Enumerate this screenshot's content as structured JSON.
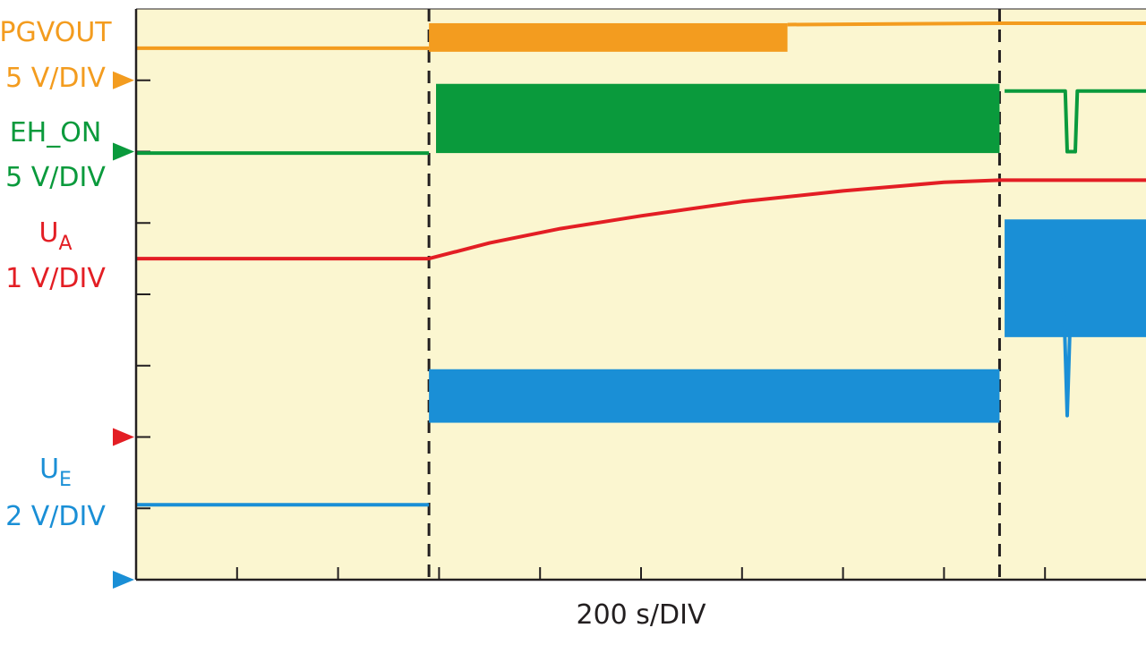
{
  "chart_data": {
    "type": "line",
    "xlabel": "200 s/DIV",
    "grid": false,
    "divisions": {
      "x": 10,
      "y": 8
    },
    "background_color": "#fbf6d0",
    "x_unit": "div",
    "y_unit": "div",
    "xlim": [
      0,
      10
    ],
    "ylim": [
      0,
      8
    ],
    "event_markers_x": [
      2.9,
      8.55
    ],
    "channels": [
      {
        "id": "pgvout",
        "name": "PGVOUT",
        "scale": "5 V/DIV",
        "color": "#f39c1f",
        "ground_level": 7,
        "segments": [
          {
            "style": "line",
            "points": [
              [
                0,
                7.45
              ],
              [
                2.9,
                7.45
              ]
            ]
          },
          {
            "style": "band",
            "x": [
              2.9,
              6.45
            ],
            "low": 7.4,
            "high": 7.8
          },
          {
            "style": "line",
            "points": [
              [
                6.45,
                7.78
              ],
              [
                8.55,
                7.8
              ],
              [
                10,
                7.8
              ]
            ]
          }
        ]
      },
      {
        "id": "eh_on",
        "name": "EH_ON",
        "scale": "5 V/DIV",
        "color": "#0a9a3c",
        "ground_level": 6,
        "segments": [
          {
            "style": "line",
            "points": [
              [
                0,
                5.98
              ],
              [
                2.9,
                5.98
              ]
            ]
          },
          {
            "style": "band",
            "x": [
              2.97,
              8.55
            ],
            "low": 5.98,
            "high": 6.95
          },
          {
            "style": "line",
            "points": [
              [
                8.6,
                6.85
              ],
              [
                9.2,
                6.85
              ],
              [
                9.22,
                6.0
              ],
              [
                9.3,
                6.0
              ],
              [
                9.32,
                6.85
              ],
              [
                10,
                6.85
              ]
            ]
          }
        ]
      },
      {
        "id": "ua",
        "name": "U",
        "name_sub": "A",
        "scale": "1 V/DIV",
        "color": "#e31e24",
        "ground_level": 2,
        "segments": [
          {
            "style": "line",
            "points": [
              [
                0,
                4.5
              ],
              [
                2.9,
                4.5
              ],
              [
                3.5,
                4.72
              ],
              [
                4.2,
                4.92
              ],
              [
                5.0,
                5.1
              ],
              [
                6.0,
                5.3
              ],
              [
                7.0,
                5.45
              ],
              [
                8.0,
                5.57
              ],
              [
                8.55,
                5.6
              ],
              [
                10,
                5.6
              ]
            ]
          }
        ]
      },
      {
        "id": "ue",
        "name": "U",
        "name_sub": "E",
        "scale": "2 V/DIV",
        "color": "#1a8fd6",
        "ground_level": 0,
        "segments": [
          {
            "style": "line",
            "points": [
              [
                0,
                1.05
              ],
              [
                2.9,
                1.05
              ]
            ]
          },
          {
            "style": "band",
            "x": [
              2.9,
              8.55
            ],
            "low": 2.2,
            "high": 2.95
          },
          {
            "style": "band",
            "x": [
              8.6,
              10
            ],
            "low": 3.4,
            "high": 5.05
          },
          {
            "style": "line",
            "points": [
              [
                9.18,
                4.2
              ],
              [
                9.22,
                2.3
              ],
              [
                9.26,
                4.1
              ]
            ]
          }
        ]
      }
    ]
  }
}
